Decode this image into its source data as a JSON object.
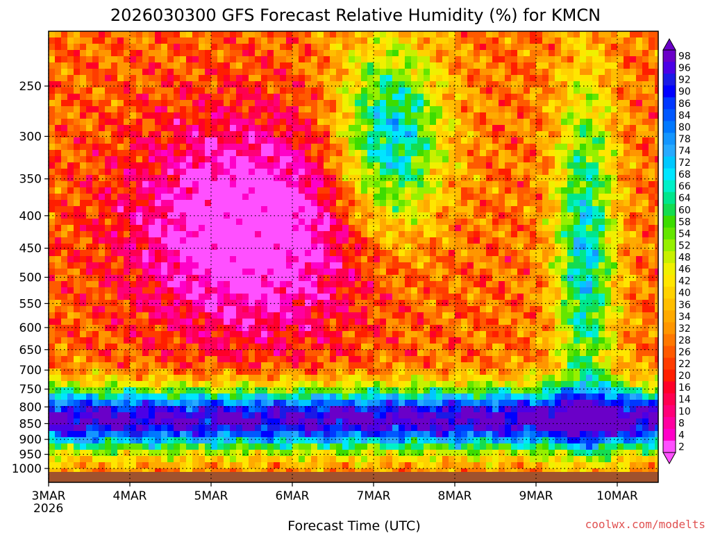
{
  "chart_data": {
    "type": "heatmap",
    "title": "2026030300 GFS Forecast Relative Humidity (%) for KMCN",
    "xlabel": "Forecast Time (UTC)",
    "y_ticks": [
      "250",
      "300",
      "350",
      "400",
      "450",
      "500",
      "550",
      "600",
      "650",
      "700",
      "750",
      "800",
      "850",
      "900",
      "950",
      "1000"
    ],
    "y_values": [
      250,
      300,
      350,
      400,
      450,
      500,
      550,
      600,
      650,
      700,
      750,
      800,
      850,
      900,
      950,
      1000
    ],
    "y_range": [
      200,
      1025
    ],
    "x_ticks": [
      "3MAR",
      "4MAR",
      "5MAR",
      "6MAR",
      "7MAR",
      "8MAR",
      "9MAR",
      "10MAR"
    ],
    "x_subtick": "2026",
    "x_range_days": [
      0,
      7.5
    ],
    "colorbar_labels": [
      "98",
      "96",
      "92",
      "90",
      "86",
      "84",
      "80",
      "78",
      "74",
      "72",
      "68",
      "66",
      "64",
      "60",
      "58",
      "54",
      "52",
      "48",
      "46",
      "42",
      "40",
      "36",
      "34",
      "32",
      "28",
      "26",
      "22",
      "20",
      "16",
      "14",
      "10",
      "8",
      "4",
      "2"
    ],
    "colorbar_colors": [
      "#6a00c8",
      "#4b00e6",
      "#1a1ae6",
      "#0000ff",
      "#0038ff",
      "#0058ff",
      "#0078ff",
      "#1496ff",
      "#28aaff",
      "#00c8ff",
      "#00e6ff",
      "#00f0c8",
      "#00e68c",
      "#14dc50",
      "#3cdc00",
      "#64e600",
      "#96f000",
      "#c8f000",
      "#f0f000",
      "#ffe600",
      "#ffd200",
      "#ffbe00",
      "#ffaa00",
      "#ff9600",
      "#ff7800",
      "#ff5a00",
      "#ff3c00",
      "#ff1e00",
      "#ff0028",
      "#ff0050",
      "#ff0078",
      "#ff00a0",
      "#ff00c8",
      "#ff50ff"
    ],
    "ground_color": "#a0522d",
    "credit": "coolwx.com/modelts",
    "legend": "right colorbar"
  }
}
